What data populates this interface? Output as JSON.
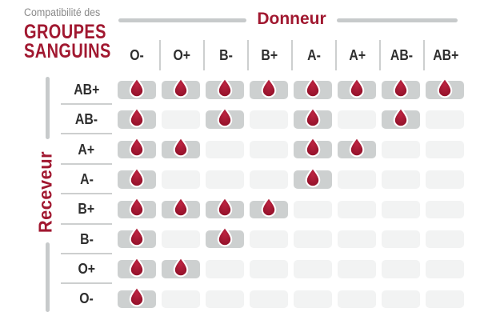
{
  "title": {
    "eyebrow": "Compatibilité des",
    "line1": "GROUPES",
    "line2": "SANGUINS"
  },
  "axes": {
    "donor": "Donneur",
    "receiver": "Receveur"
  },
  "chart_data": {
    "type": "heatmap",
    "title": "Compatibilité des GROUPES SANGUINS",
    "x_axis_label": "Donneur",
    "y_axis_label": "Receveur",
    "x_categories": [
      "O-",
      "O+",
      "B-",
      "B+",
      "A-",
      "A+",
      "AB-",
      "AB+"
    ],
    "y_categories": [
      "AB+",
      "AB-",
      "A+",
      "A-",
      "B+",
      "B-",
      "O+",
      "O-"
    ],
    "values": [
      [
        1,
        1,
        1,
        1,
        1,
        1,
        1,
        1
      ],
      [
        1,
        0,
        1,
        0,
        1,
        0,
        1,
        0
      ],
      [
        1,
        1,
        0,
        0,
        1,
        1,
        0,
        0
      ],
      [
        1,
        0,
        0,
        0,
        1,
        0,
        0,
        0
      ],
      [
        1,
        1,
        1,
        1,
        0,
        0,
        0,
        0
      ],
      [
        1,
        0,
        1,
        0,
        0,
        0,
        0,
        0
      ],
      [
        1,
        1,
        0,
        0,
        0,
        0,
        0,
        0
      ],
      [
        1,
        0,
        0,
        0,
        0,
        0,
        0,
        0
      ]
    ],
    "value_meaning": {
      "1": "compatible (blood drop shown)",
      "0": "not compatible (empty cell)"
    },
    "true_cell_icon": "blood-drop-icon",
    "legend_position": "none",
    "grid": "off"
  },
  "colors": {
    "accent_red": "#A11830",
    "drop_light": "#BB2340",
    "drop_dark": "#8E0F27",
    "label_dark": "#2E2E2E",
    "muted_gray": "#8A8A8A",
    "thick_line_gray": "#C7CACB",
    "separator_gray": "#CDCFCF",
    "cell_filled_bg": "#CDD0D0",
    "cell_empty_bg": "#F2F3F3",
    "background": "#FFFFFF"
  }
}
